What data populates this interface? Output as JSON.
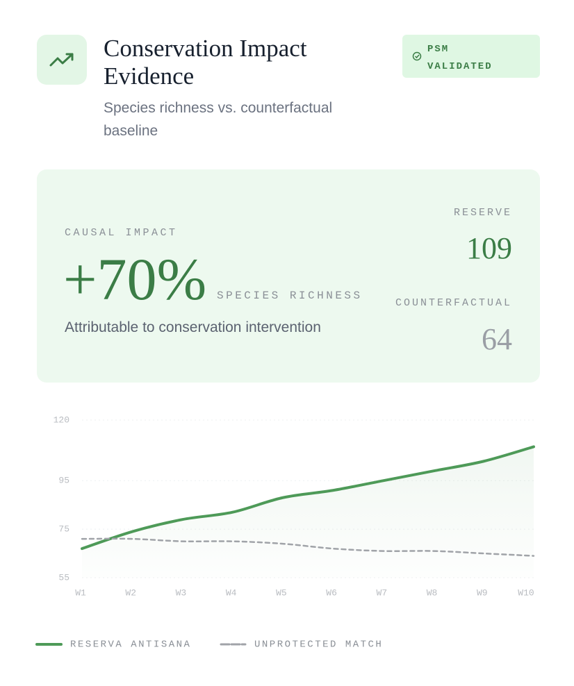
{
  "header": {
    "title": "Conservation Impact Evidence",
    "subtitle": "Species richness vs. counterfactual baseline",
    "badge": "PSM VALIDATED"
  },
  "impact": {
    "label": "CAUSAL IMPACT",
    "value": "+70%",
    "unit": "SPECIES RICHNESS",
    "note": "Attributable to conservation intervention",
    "reserve_label": "RESERVE",
    "reserve_value": 109,
    "counterfactual_label": "COUNTERFACTUAL",
    "counterfactual_value": 64
  },
  "chart_data": {
    "type": "line",
    "categories": [
      "W1",
      "W2",
      "W3",
      "W4",
      "W5",
      "W6",
      "W7",
      "W8",
      "W9",
      "W10"
    ],
    "series": [
      {
        "name": "RESERVA ANTISANA",
        "color": "#4e9a58",
        "values": [
          67,
          74,
          79,
          82,
          88,
          91,
          95,
          99,
          103,
          109
        ]
      },
      {
        "name": "UNPROTECTED MATCH",
        "color": "#a0a3a8",
        "dashed": true,
        "values": [
          71,
          71,
          70,
          70,
          69,
          67,
          66,
          66,
          65,
          64
        ]
      }
    ],
    "ylim": [
      55,
      120
    ],
    "yticks": [
      55,
      75,
      95,
      120
    ],
    "grid": true
  }
}
